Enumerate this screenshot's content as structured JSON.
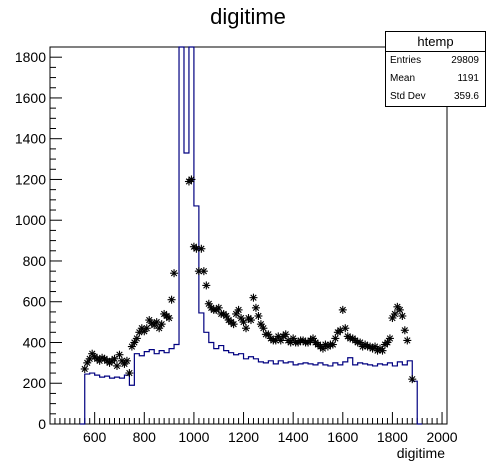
{
  "chart_data": {
    "type": "histogram",
    "title": "digitime",
    "xlabel": "digitime",
    "ylabel": "",
    "xlim": [
      420,
      2020
    ],
    "ylim": [
      0,
      1850
    ],
    "grid": false,
    "x_ticks": [
      600,
      800,
      1000,
      1200,
      1400,
      1600,
      1800,
      2000
    ],
    "y_ticks": [
      0,
      200,
      400,
      600,
      800,
      1000,
      1200,
      1400,
      1600,
      1800
    ],
    "line_color": "#000080",
    "marker_color": "#000000",
    "stats_box": {
      "name": "htemp",
      "rows": [
        {
          "label": "Entries",
          "value": "29809"
        },
        {
          "label": "Mean",
          "value": "1191"
        },
        {
          "label": "Std Dev",
          "value": "359.6"
        }
      ]
    },
    "series": [
      {
        "style": "step-histogram",
        "bin_width": 20,
        "bins": [
          [
            540,
            0
          ],
          [
            560,
            245
          ],
          [
            580,
            250
          ],
          [
            600,
            240
          ],
          [
            620,
            230
          ],
          [
            640,
            235
          ],
          [
            660,
            225
          ],
          [
            680,
            230
          ],
          [
            700,
            225
          ],
          [
            720,
            240
          ],
          [
            740,
            190
          ],
          [
            760,
            345
          ],
          [
            780,
            335
          ],
          [
            800,
            355
          ],
          [
            820,
            365
          ],
          [
            840,
            345
          ],
          [
            860,
            360
          ],
          [
            880,
            350
          ],
          [
            900,
            370
          ],
          [
            920,
            390
          ],
          [
            940,
            1850
          ],
          [
            960,
            1330
          ],
          [
            980,
            1850
          ],
          [
            1000,
            1070
          ],
          [
            1020,
            545
          ],
          [
            1040,
            450
          ],
          [
            1060,
            400
          ],
          [
            1080,
            370
          ],
          [
            1100,
            385
          ],
          [
            1120,
            360
          ],
          [
            1140,
            350
          ],
          [
            1160,
            340
          ],
          [
            1180,
            345
          ],
          [
            1200,
            320
          ],
          [
            1220,
            330
          ],
          [
            1240,
            320
          ],
          [
            1260,
            305
          ],
          [
            1280,
            300
          ],
          [
            1300,
            310
          ],
          [
            1320,
            295
          ],
          [
            1340,
            310
          ],
          [
            1360,
            300
          ],
          [
            1380,
            305
          ],
          [
            1400,
            290
          ],
          [
            1420,
            295
          ],
          [
            1440,
            300
          ],
          [
            1460,
            295
          ],
          [
            1480,
            290
          ],
          [
            1500,
            300
          ],
          [
            1520,
            290
          ],
          [
            1540,
            285
          ],
          [
            1560,
            300
          ],
          [
            1580,
            290
          ],
          [
            1600,
            305
          ],
          [
            1620,
            325
          ],
          [
            1640,
            290
          ],
          [
            1660,
            300
          ],
          [
            1680,
            295
          ],
          [
            1700,
            290
          ],
          [
            1720,
            285
          ],
          [
            1740,
            295
          ],
          [
            1760,
            290
          ],
          [
            1780,
            300
          ],
          [
            1800,
            285
          ],
          [
            1820,
            305
          ],
          [
            1840,
            290
          ],
          [
            1860,
            310
          ],
          [
            1880,
            210
          ],
          [
            1900,
            0
          ]
        ]
      },
      {
        "style": "markers",
        "marker": "asterisk",
        "points": [
          [
            560,
            270
          ],
          [
            570,
            300
          ],
          [
            580,
            320
          ],
          [
            590,
            345
          ],
          [
            600,
            330
          ],
          [
            610,
            320
          ],
          [
            620,
            310
          ],
          [
            630,
            325
          ],
          [
            640,
            320
          ],
          [
            650,
            310
          ],
          [
            660,
            300
          ],
          [
            670,
            310
          ],
          [
            680,
            320
          ],
          [
            690,
            285
          ],
          [
            700,
            340
          ],
          [
            710,
            310
          ],
          [
            720,
            295
          ],
          [
            730,
            310
          ],
          [
            740,
            250
          ],
          [
            750,
            380
          ],
          [
            760,
            400
          ],
          [
            770,
            420
          ],
          [
            780,
            450
          ],
          [
            790,
            470
          ],
          [
            800,
            455
          ],
          [
            810,
            470
          ],
          [
            820,
            510
          ],
          [
            830,
            495
          ],
          [
            840,
            485
          ],
          [
            850,
            500
          ],
          [
            860,
            470
          ],
          [
            870,
            490
          ],
          [
            880,
            540
          ],
          [
            890,
            530
          ],
          [
            900,
            520
          ],
          [
            910,
            610
          ],
          [
            920,
            740
          ],
          [
            940,
            1870
          ],
          [
            960,
            1860
          ],
          [
            970,
            1900
          ],
          [
            980,
            1190
          ],
          [
            990,
            1200
          ],
          [
            1000,
            870
          ],
          [
            1010,
            860
          ],
          [
            1020,
            750
          ],
          [
            1030,
            860
          ],
          [
            1040,
            750
          ],
          [
            1050,
            680
          ],
          [
            1060,
            590
          ],
          [
            1070,
            570
          ],
          [
            1080,
            560
          ],
          [
            1090,
            560
          ],
          [
            1100,
            570
          ],
          [
            1110,
            540
          ],
          [
            1120,
            540
          ],
          [
            1130,
            530
          ],
          [
            1140,
            510
          ],
          [
            1150,
            500
          ],
          [
            1160,
            490
          ],
          [
            1170,
            540
          ],
          [
            1180,
            560
          ],
          [
            1190,
            520
          ],
          [
            1200,
            500
          ],
          [
            1210,
            470
          ],
          [
            1220,
            520
          ],
          [
            1230,
            510
          ],
          [
            1240,
            620
          ],
          [
            1250,
            570
          ],
          [
            1260,
            530
          ],
          [
            1270,
            490
          ],
          [
            1280,
            470
          ],
          [
            1290,
            440
          ],
          [
            1300,
            440
          ],
          [
            1310,
            420
          ],
          [
            1320,
            410
          ],
          [
            1330,
            410
          ],
          [
            1340,
            430
          ],
          [
            1350,
            410
          ],
          [
            1360,
            430
          ],
          [
            1370,
            440
          ],
          [
            1380,
            410
          ],
          [
            1390,
            400
          ],
          [
            1400,
            420
          ],
          [
            1410,
            400
          ],
          [
            1420,
            400
          ],
          [
            1430,
            410
          ],
          [
            1440,
            410
          ],
          [
            1450,
            400
          ],
          [
            1460,
            400
          ],
          [
            1470,
            410
          ],
          [
            1480,
            420
          ],
          [
            1490,
            400
          ],
          [
            1500,
            390
          ],
          [
            1510,
            380
          ],
          [
            1520,
            370
          ],
          [
            1530,
            390
          ],
          [
            1540,
            380
          ],
          [
            1550,
            390
          ],
          [
            1560,
            390
          ],
          [
            1570,
            420
          ],
          [
            1580,
            450
          ],
          [
            1590,
            460
          ],
          [
            1600,
            560
          ],
          [
            1610,
            470
          ],
          [
            1620,
            430
          ],
          [
            1630,
            420
          ],
          [
            1640,
            420
          ],
          [
            1650,
            410
          ],
          [
            1660,
            400
          ],
          [
            1670,
            400
          ],
          [
            1680,
            380
          ],
          [
            1690,
            390
          ],
          [
            1700,
            380
          ],
          [
            1710,
            380
          ],
          [
            1720,
            370
          ],
          [
            1730,
            380
          ],
          [
            1740,
            360
          ],
          [
            1750,
            370
          ],
          [
            1760,
            360
          ],
          [
            1770,
            390
          ],
          [
            1780,
            400
          ],
          [
            1790,
            420
          ],
          [
            1800,
            520
          ],
          [
            1810,
            540
          ],
          [
            1820,
            575
          ],
          [
            1830,
            560
          ],
          [
            1840,
            530
          ],
          [
            1850,
            460
          ],
          [
            1860,
            410
          ],
          [
            1880,
            220
          ]
        ]
      }
    ]
  }
}
